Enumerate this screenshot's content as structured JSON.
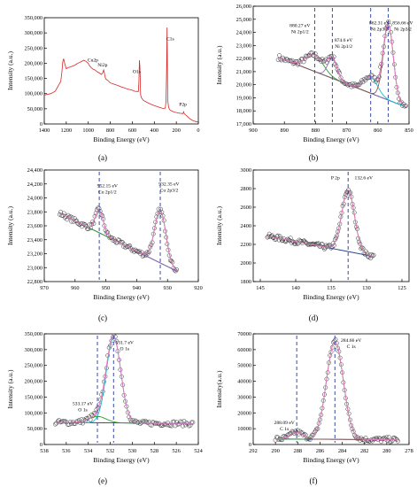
{
  "figure": {
    "panel_labels": [
      "(a)",
      "(b)",
      "(c)",
      "(d)",
      "(e)",
      "(f)"
    ]
  },
  "chart_data": [
    {
      "id": "a",
      "type": "line",
      "xlabel": "Binding Energy (eV)",
      "ylabel": "Intensity (a.u.)",
      "xlim": [
        1400,
        0
      ],
      "ylim": [
        0,
        350000
      ],
      "xticks": [
        1400,
        1200,
        1000,
        800,
        600,
        400,
        200,
        0
      ],
      "yticks": [
        0,
        50000,
        100000,
        150000,
        200000,
        250000,
        300000,
        350000
      ],
      "ytick_labels": [
        "0",
        "50,000",
        "100,000",
        "150,000",
        "200,000",
        "250,000",
        "300,000",
        "350,000"
      ],
      "colors": {
        "survey": "#d62728"
      },
      "series": [
        {
          "x": [
            1400,
            1340,
            1300,
            1250,
            1240,
            1232,
            1224,
            1215,
            1200,
            1180,
            1160,
            1120,
            1100,
            1060,
            1040,
            1020,
            1000,
            995,
            980,
            960,
            940,
            920,
            900,
            880,
            870,
            860,
            855,
            850,
            845,
            840,
            820,
            800,
            780,
            760,
            740,
            720,
            700,
            680,
            660,
            640,
            620,
            600,
            580,
            560,
            545,
            540,
            535,
            531,
            528,
            525,
            520,
            500,
            460,
            420,
            380,
            340,
            320,
            300,
            294,
            288,
            284,
            281,
            278,
            270,
            260,
            240,
            230,
            220,
            200,
            180,
            160,
            140,
            133,
            130,
            120,
            100,
            80,
            60,
            40,
            20,
            0
          ],
          "y": [
            95000,
            100000,
            108000,
            140000,
            170000,
            205000,
            215000,
            200000,
            182000,
            186000,
            188000,
            194000,
            199000,
            206000,
            210000,
            206000,
            200000,
            195000,
            188000,
            181000,
            178000,
            172000,
            168000,
            163000,
            168000,
            178000,
            170000,
            160000,
            152000,
            148000,
            143000,
            135000,
            133000,
            130000,
            128000,
            125000,
            122000,
            120000,
            117000,
            115000,
            113000,
            111000,
            108000,
            107000,
            107000,
            140000,
            210000,
            188000,
            150000,
            98000,
            88000,
            78000,
            70000,
            63000,
            58000,
            53000,
            51000,
            52000,
            75000,
            180000,
            318000,
            175000,
            80000,
            55000,
            47000,
            42000,
            41000,
            39000,
            38000,
            36000,
            35000,
            34000,
            40000,
            36000,
            31000,
            25000,
            18000,
            13000,
            10000,
            8000,
            7000
          ]
        }
      ],
      "annotations": [
        {
          "text": "Cu2p",
          "x": 958,
          "y": 205000
        },
        {
          "text": "Ni2p",
          "x": 870,
          "y": 190000
        },
        {
          "text": "O1s",
          "x": 560,
          "y": 168000
        },
        {
          "text": "C1s",
          "x": 255,
          "y": 275000
        },
        {
          "text": "P2p",
          "x": 140,
          "y": 60000
        }
      ]
    },
    {
      "id": "b",
      "type": "scatter",
      "xlabel": "Binding Energy (eV)",
      "ylabel": "Intensity (a.u.)",
      "xlim": [
        900,
        850
      ],
      "ylim": [
        17000,
        26000
      ],
      "xticks": [
        900,
        890,
        880,
        870,
        860,
        850
      ],
      "yticks": [
        17000,
        18000,
        19000,
        20000,
        21000,
        22000,
        23000,
        24000,
        25000,
        26000
      ],
      "ytick_labels": [
        "17,000",
        "18,000",
        "19,000",
        "20,000",
        "21,000",
        "22,000",
        "23,000",
        "24,000",
        "25,000",
        "26,000"
      ],
      "colors": {
        "points": "#333333",
        "fit": "#e377c2",
        "background": "#1f3c88",
        "peak1": "#2ca02c",
        "peak2": "#9467bd",
        "peak3": "#17becf",
        "peak4": "#8c564b",
        "marker": "#3b4ba8"
      },
      "baseline": {
        "x": [
          892,
          851
        ],
        "y": [
          22100,
          18300
        ]
      },
      "peaks": [
        {
          "center": 880.27,
          "height": 1250,
          "width": 2.8
        },
        {
          "center": 874.6,
          "height": 1500,
          "width": 1.5
        },
        {
          "center": 862.31,
          "height": 1250,
          "width": 2.2
        },
        {
          "center": 856.66,
          "height": 5800,
          "width": 1.6
        }
      ],
      "markers": [
        880.27,
        874.6,
        862.31,
        856.66
      ],
      "annotations": [
        {
          "lines": [
            "880.27 eV",
            "Ni 2p1/2"
          ],
          "x": 885,
          "y": 24400
        },
        {
          "lines": [
            "874.6 eV",
            "Ni 2p1/2"
          ],
          "x": 871,
          "y": 23300
        },
        {
          "lines": [
            "862.31 eV",
            "Ni 2p3/2"
          ],
          "x": 859.5,
          "y": 24600
        },
        {
          "lines": [
            "856.66 eV",
            "Ni 2p3/2"
          ],
          "x": 852,
          "y": 24600
        }
      ]
    },
    {
      "id": "c",
      "type": "scatter",
      "xlabel": "Binding Energy (eV)",
      "ylabel": "Intensity (a.u.)",
      "xlim": [
        970,
        920
      ],
      "ylim": [
        22800,
        24400
      ],
      "xticks": [
        970,
        960,
        950,
        940,
        930,
        920
      ],
      "yticks": [
        22800,
        23000,
        23200,
        23400,
        23600,
        23800,
        24000,
        24200,
        24400
      ],
      "ytick_labels": [
        "22,800",
        "23,000",
        "23,200",
        "23,400",
        "23,600",
        "23,800",
        "24,000",
        "24,200",
        "24,400"
      ],
      "colors": {
        "points": "#333333",
        "fit": "#e377c2",
        "background": "#1f3c88",
        "peak1": "#9467bd",
        "peak2": "#2ca02c",
        "marker": "#3b4ba8"
      },
      "baseline": {
        "x": [
          965,
          927
        ],
        "y": [
          23780,
          22950
        ]
      },
      "peaks": [
        {
          "center": 952.15,
          "height": 330,
          "width": 1.3
        },
        {
          "center": 932.35,
          "height": 760,
          "width": 1.8
        }
      ],
      "markers": [
        952.15,
        932.35
      ],
      "annotations": [
        {
          "lines": [
            "952.15 eV",
            "Cu 2p1/2"
          ],
          "x": 949.5,
          "y": 24150
        },
        {
          "lines": [
            "932.35 eV",
            "Cu 2p3/2"
          ],
          "x": 929.5,
          "y": 24180
        }
      ]
    },
    {
      "id": "d",
      "type": "scatter",
      "xlabel": "Binding Energy (eV)",
      "ylabel": "Intensity (a.u.)",
      "xlim": [
        146,
        124
      ],
      "ylim": [
        1800,
        3000
      ],
      "xticks": [
        145,
        140,
        135,
        130,
        125
      ],
      "yticks": [
        1800,
        2000,
        2200,
        2400,
        2600,
        2800,
        3000
      ],
      "ytick_labels": [
        "1800",
        "2000",
        "2200",
        "2400",
        "2600",
        "2800",
        "3000"
      ],
      "colors": {
        "points": "#333333",
        "fit": "#e377c2",
        "background": "#1f3c88",
        "peak1": "#2ca02c",
        "marker": "#3b4ba8"
      },
      "baseline": {
        "x": [
          144,
          129
        ],
        "y": [
          2290,
          2070
        ]
      },
      "peaks": [
        {
          "center": 132.6,
          "height": 660,
          "width": 0.9
        }
      ],
      "markers": [
        132.6
      ],
      "annotations": [
        {
          "lines": [
            "P 2p"
          ],
          "x": 134.4,
          "y": 2900
        },
        {
          "lines": [
            "132.6 eV"
          ],
          "x": 130.4,
          "y": 2900
        }
      ]
    },
    {
      "id": "e",
      "type": "scatter",
      "xlabel": "Binding Energy (eV)",
      "ylabel": "Intensity (a.u.)",
      "xlim": [
        538,
        524
      ],
      "ylim": [
        0,
        350000
      ],
      "xticks": [
        538,
        536,
        534,
        532,
        530,
        528,
        526,
        524
      ],
      "yticks": [
        0,
        50000,
        100000,
        150000,
        200000,
        250000,
        300000,
        350000
      ],
      "ytick_labels": [
        "0",
        "50,000",
        "100,000",
        "150,000",
        "200,000",
        "250,000",
        "300,000",
        "350,000"
      ],
      "colors": {
        "points": "#333333",
        "fit": "#e377c2",
        "background": "#1f3c88",
        "peak1": "#2ca02c",
        "peak2": "#17becf",
        "marker": "#3b4ba8"
      },
      "baseline": {
        "x": [
          537,
          524.5
        ],
        "y": [
          70000,
          66000
        ]
      },
      "peaks": [
        {
          "center": 533.17,
          "height": 20000,
          "width": 0.8
        },
        {
          "center": 531.7,
          "height": 272000,
          "width": 0.65
        }
      ],
      "markers": [
        533.17,
        531.7
      ],
      "annotations": [
        {
          "lines": [
            "531.7 eV",
            "O 1s"
          ],
          "x": 530.7,
          "y": 318000
        },
        {
          "lines": [
            "533.17 eV",
            "O 1s"
          ],
          "x": 534.5,
          "y": 125000
        }
      ]
    },
    {
      "id": "f",
      "type": "scatter",
      "xlabel": "Binding Energy (eV)",
      "ylabel": "Intensity(a.u.)",
      "xlim": [
        292,
        278
      ],
      "ylim": [
        0,
        70000
      ],
      "xticks": [
        292,
        290,
        288,
        286,
        284,
        282,
        280,
        278
      ],
      "yticks": [
        0,
        10000,
        20000,
        30000,
        40000,
        50000,
        60000,
        70000
      ],
      "ytick_labels": [
        "0",
        "10000",
        "20000",
        "30000",
        "40000",
        "50000",
        "60000",
        "70000"
      ],
      "colors": {
        "points": "#333333",
        "fit": "#e377c2",
        "background": "#1f3c88",
        "peak1": "#8c564b",
        "peak2": "#2ca02c",
        "marker": "#3b4ba8"
      },
      "baseline": {
        "x": [
          290,
          279
        ],
        "y": [
          3500,
          3000
        ]
      },
      "peaks": [
        {
          "center": 288.09,
          "height": 4500,
          "width": 0.55
        },
        {
          "center": 284.66,
          "height": 62000,
          "width": 0.75
        }
      ],
      "markers": [
        288.09,
        284.66
      ],
      "annotations": [
        {
          "lines": [
            "284.66 eV",
            "C 1s"
          ],
          "x": 283.2,
          "y": 65000
        },
        {
          "lines": [
            "288.09 eV",
            "C 1s"
          ],
          "x": 289.2,
          "y": 13000
        }
      ]
    }
  ]
}
